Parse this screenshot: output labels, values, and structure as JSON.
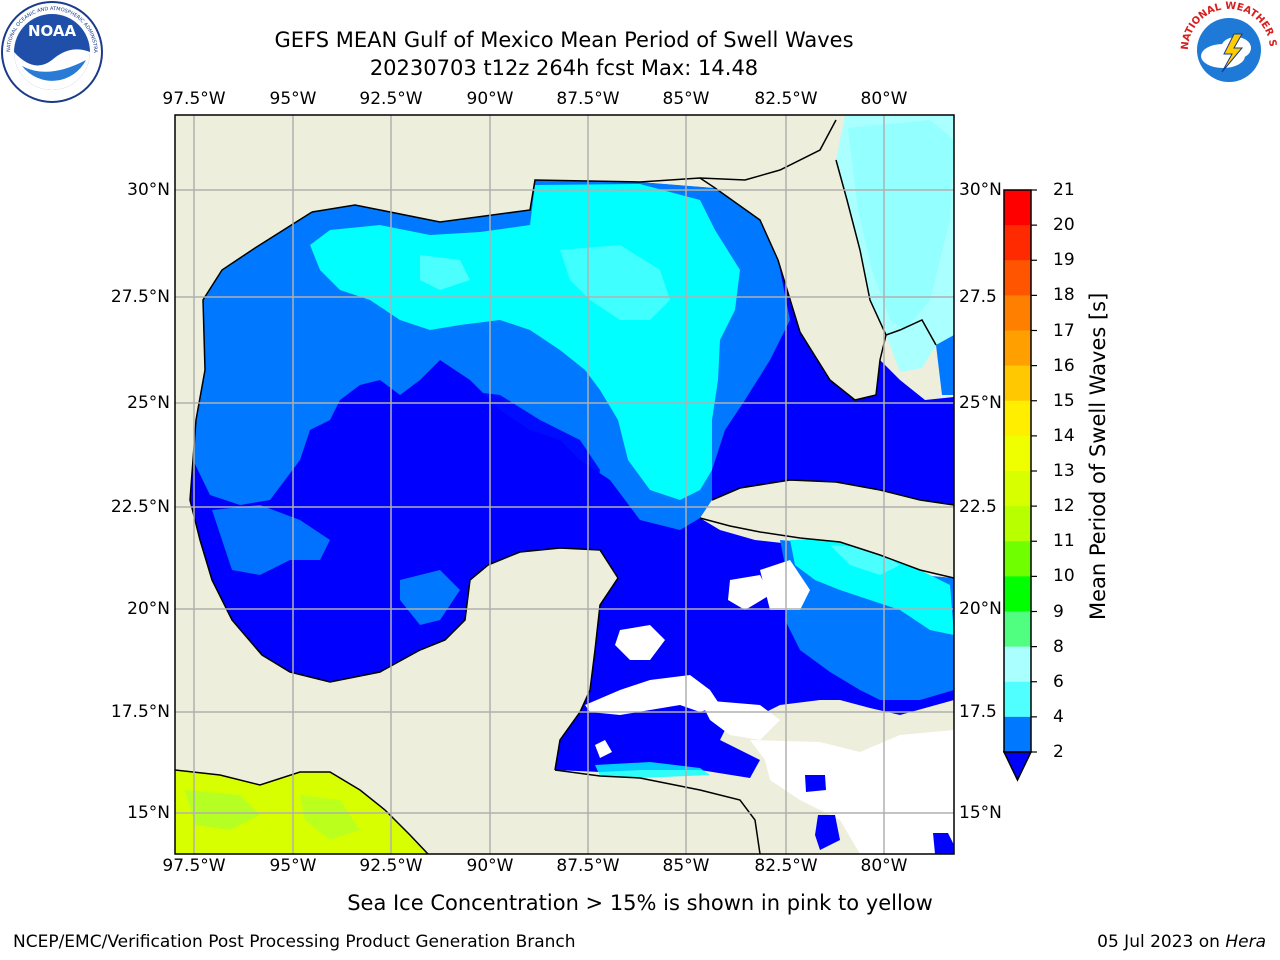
{
  "header": {
    "title_line1": "GEFS MEAN Gulf of Mexico Mean Period of Swell Waves",
    "title_line2": "20230703 t12z 264h fcst   Max: 14.48"
  },
  "logos": {
    "left": "NOAA",
    "left_ring_text": "NATIONAL OCEANIC AND ATMOSPHERIC ADMINISTRATION · U.S. DEPARTMENT OF COMMERCE",
    "right_ring_text": "NATIONAL WEATHER SERVICE"
  },
  "map": {
    "lon_labels": [
      "97.5°W",
      "95°W",
      "92.5°W",
      "90°W",
      "87.5°W",
      "85°W",
      "82.5°W",
      "80°W"
    ],
    "lat_labels_left": [
      "30°N",
      "27.5°N",
      "25°N",
      "22.5°N",
      "20°N",
      "17.5°N",
      "15°N"
    ],
    "lat_labels_right": [
      "30°N",
      "27.5",
      "25°N",
      "22.5",
      "20°N",
      "17.5",
      "15°N"
    ],
    "colors": {
      "land": "#eeeedc",
      "coast": "#000000",
      "grid": "#b0b0b0",
      "dark_blue": "#0000ff",
      "mid_blue": "#0078ff",
      "cyan": "#00ffff",
      "light_cyan": "#7fffff",
      "pale_cyan": "#aaffff",
      "sea_ice_yellow": "#d8ff00",
      "sea_ice_green": "#a8ff30"
    }
  },
  "colorbar": {
    "label": "Mean Period of Swell Waves [s]",
    "ticks": [
      "21",
      "20",
      "19",
      "18",
      "17",
      "16",
      "15",
      "14",
      "13",
      "12",
      "11",
      "10",
      "9",
      "8",
      "6",
      "4",
      "2"
    ],
    "level_colors": [
      "#ff0000",
      "#ff2a00",
      "#ff5500",
      "#ff7f00",
      "#ffa000",
      "#ffc800",
      "#ffee00",
      "#f0ff00",
      "#d8ff00",
      "#b8ff00",
      "#70ff00",
      "#00ff00",
      "#00ff00",
      "#50ff80",
      "#aaffff",
      "#50ffff",
      "#00ffff",
      "#0078ff",
      "#0000ff"
    ]
  },
  "chart_data": {
    "type": "heatmap",
    "title": "GEFS MEAN Gulf of Mexico Mean Period of Swell Waves",
    "subtitle": "20230703 t12z 264h fcst   Max: 14.48",
    "max": 14.48,
    "lon_range": [
      -98.5,
      -78.7
    ],
    "lat_range": [
      14.0,
      32.0
    ],
    "colorbar_label": "Mean Period of Swell Waves [s]",
    "colorbar_levels": [
      2,
      4,
      6,
      8,
      9,
      10,
      11,
      12,
      13,
      14,
      15,
      16,
      17,
      18,
      19,
      20,
      21
    ],
    "grid": true
  },
  "note": "Sea Ice Concentration > 15% is shown in pink to yellow",
  "footer": {
    "left": "NCEP/EMC/Verification Post Processing Product Generation Branch",
    "right_date": "05 Jul 2023 on ",
    "right_machine": "Hera"
  }
}
